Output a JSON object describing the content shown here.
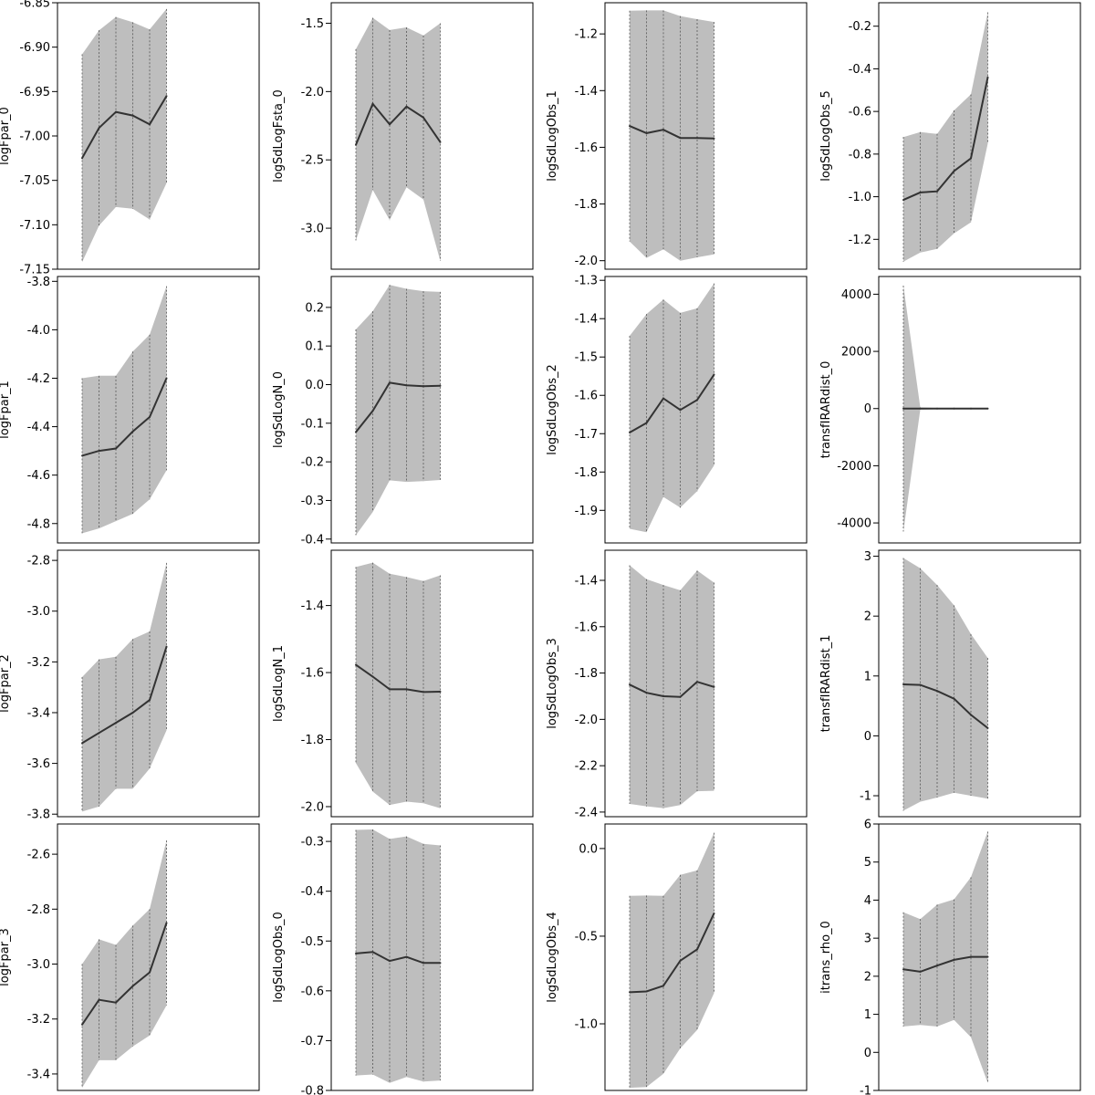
{
  "chart_data": [
    {
      "type": "area",
      "ylabel": "logFpar_0",
      "yticks": [
        -6.85,
        -6.9,
        -6.95,
        -7.0,
        -7.05,
        -7.1,
        -7.15
      ],
      "ylim": [
        -7.15,
        -6.85
      ],
      "x": [
        1,
        2,
        3,
        4,
        5,
        6
      ],
      "mean": [
        -7.025,
        -6.991,
        -6.973,
        -6.977,
        -6.987,
        -6.955
      ],
      "lower": [
        -7.142,
        -7.101,
        -7.08,
        -7.082,
        -7.094,
        -7.053
      ],
      "upper": [
        -6.908,
        -6.881,
        -6.866,
        -6.872,
        -6.88,
        -6.857
      ]
    },
    {
      "type": "area",
      "ylabel": "logSdLogFsta_0",
      "yticks": [
        -1.5,
        -2.0,
        -2.5,
        -3.0
      ],
      "ylim": [
        -3.3,
        -1.35
      ],
      "x": [
        1,
        2,
        3,
        4,
        5,
        6
      ],
      "mean": [
        -2.39,
        -2.09,
        -2.24,
        -2.11,
        -2.19,
        -2.37
      ],
      "lower": [
        -3.09,
        -2.72,
        -2.94,
        -2.7,
        -2.79,
        -3.24
      ],
      "upper": [
        -1.69,
        -1.46,
        -1.55,
        -1.53,
        -1.59,
        -1.5
      ]
    },
    {
      "type": "area",
      "ylabel": "logSdLogObs_1",
      "yticks": [
        -1.2,
        -1.4,
        -1.6,
        -1.8,
        -2.0
      ],
      "ylim": [
        -2.03,
        -1.09
      ],
      "x": [
        1,
        2,
        3,
        4,
        5,
        6
      ],
      "mean": [
        -1.525,
        -1.55,
        -1.538,
        -1.567,
        -1.567,
        -1.569
      ],
      "lower": [
        -1.932,
        -1.99,
        -1.96,
        -2.0,
        -1.988,
        -1.978
      ],
      "upper": [
        -1.118,
        -1.117,
        -1.117,
        -1.137,
        -1.148,
        -1.158
      ]
    },
    {
      "type": "area",
      "ylabel": "logSdLogObs_5",
      "yticks": [
        -0.2,
        -0.4,
        -0.6,
        -0.8,
        -1.0,
        -1.2
      ],
      "ylim": [
        -1.34,
        -0.09
      ],
      "x": [
        1,
        2,
        3,
        4,
        5,
        6
      ],
      "mean": [
        -1.015,
        -0.98,
        -0.975,
        -0.88,
        -0.82,
        -0.44
      ],
      "lower": [
        -1.305,
        -1.262,
        -1.245,
        -1.172,
        -1.12,
        -0.75
      ],
      "upper": [
        -0.72,
        -0.697,
        -0.705,
        -0.595,
        -0.52,
        -0.135
      ]
    },
    {
      "type": "area",
      "ylabel": "logFpar_1",
      "yticks": [
        -3.8,
        -4.0,
        -4.2,
        -4.4,
        -4.6,
        -4.8
      ],
      "ylim": [
        -4.88,
        -3.78
      ],
      "x": [
        1,
        2,
        3,
        4,
        5,
        6
      ],
      "mean": [
        -4.52,
        -4.5,
        -4.49,
        -4.42,
        -4.36,
        -4.2
      ],
      "lower": [
        -4.84,
        -4.82,
        -4.79,
        -4.76,
        -4.7,
        -4.58
      ],
      "upper": [
        -4.2,
        -4.19,
        -4.19,
        -4.09,
        -4.02,
        -3.82
      ]
    },
    {
      "type": "area",
      "ylabel": "logSdLogN_0",
      "yticks": [
        0.2,
        0.1,
        0.0,
        -0.1,
        -0.2,
        -0.3,
        -0.4
      ],
      "ylim": [
        -0.41,
        0.28
      ],
      "x": [
        1,
        2,
        3,
        4,
        5,
        6
      ],
      "mean": [
        -0.123,
        -0.068,
        0.005,
        -0.002,
        -0.004,
        -0.003
      ],
      "lower": [
        -0.39,
        -0.33,
        -0.248,
        -0.252,
        -0.25,
        -0.247
      ],
      "upper": [
        0.143,
        0.19,
        0.258,
        0.248,
        0.242,
        0.24
      ]
    },
    {
      "type": "area",
      "ylabel": "logSdLogObs_2",
      "yticks": [
        -1.3,
        -1.4,
        -1.5,
        -1.6,
        -1.7,
        -1.8,
        -1.9
      ],
      "ylim": [
        -1.985,
        -1.29
      ],
      "x": [
        1,
        2,
        3,
        4,
        5,
        6
      ],
      "mean": [
        -1.697,
        -1.672,
        -1.608,
        -1.638,
        -1.612,
        -1.546
      ],
      "lower": [
        -1.948,
        -1.957,
        -1.865,
        -1.893,
        -1.85,
        -1.783
      ],
      "upper": [
        -1.445,
        -1.388,
        -1.35,
        -1.385,
        -1.373,
        -1.308
      ]
    },
    {
      "type": "area",
      "ylabel": "transfIRARdist_0",
      "yticks": [
        4000,
        2000,
        0,
        -2000,
        -4000
      ],
      "ylim": [
        -4700,
        4620
      ],
      "x": [
        1,
        2,
        3,
        4,
        5,
        6
      ],
      "mean": [
        0,
        0,
        0,
        0,
        0,
        0
      ],
      "lower": [
        -4300,
        -40,
        -20,
        -15,
        -12,
        -10
      ],
      "upper": [
        4300,
        40,
        20,
        15,
        12,
        10
      ]
    },
    {
      "type": "area",
      "ylabel": "logFpar_2",
      "yticks": [
        -2.8,
        -3.0,
        -3.2,
        -3.4,
        -3.6,
        -3.8
      ],
      "ylim": [
        -3.81,
        -2.76
      ],
      "x": [
        1,
        2,
        3,
        4,
        5,
        6
      ],
      "mean": [
        -3.52,
        -3.48,
        -3.44,
        -3.4,
        -3.35,
        -3.14
      ],
      "lower": [
        -3.79,
        -3.77,
        -3.7,
        -3.7,
        -3.62,
        -3.47
      ],
      "upper": [
        -3.26,
        -3.19,
        -3.18,
        -3.11,
        -3.08,
        -2.81
      ]
    },
    {
      "type": "area",
      "ylabel": "logSdLogN_1",
      "yticks": [
        -1.4,
        -1.6,
        -1.8,
        -2.0
      ],
      "ylim": [
        -2.03,
        -1.235
      ],
      "x": [
        1,
        2,
        3,
        4,
        5,
        6
      ],
      "mean": [
        -1.577,
        -1.612,
        -1.65,
        -1.65,
        -1.658,
        -1.657
      ],
      "lower": [
        -1.87,
        -1.955,
        -1.995,
        -1.985,
        -1.99,
        -2.005
      ],
      "upper": [
        -1.285,
        -1.272,
        -1.305,
        -1.315,
        -1.327,
        -1.31
      ]
    },
    {
      "type": "area",
      "ylabel": "logSdLogObs_3",
      "yticks": [
        -1.4,
        -1.6,
        -1.8,
        -2.0,
        -2.2,
        -2.4
      ],
      "ylim": [
        -2.42,
        -1.27
      ],
      "x": [
        1,
        2,
        3,
        4,
        5,
        6
      ],
      "mean": [
        -1.85,
        -1.885,
        -1.9,
        -1.903,
        -1.838,
        -1.86
      ],
      "lower": [
        -2.365,
        -2.375,
        -2.383,
        -2.37,
        -2.31,
        -2.308
      ],
      "upper": [
        -1.335,
        -1.395,
        -1.42,
        -1.443,
        -1.358,
        -1.41
      ]
    },
    {
      "type": "area",
      "ylabel": "transfIRARdist_1",
      "yticks": [
        3,
        2,
        1,
        0,
        -1
      ],
      "ylim": [
        -1.35,
        3.1
      ],
      "x": [
        1,
        2,
        3,
        4,
        5,
        6
      ],
      "mean": [
        0.86,
        0.85,
        0.75,
        0.62,
        0.35,
        0.13
      ],
      "lower": [
        -1.25,
        -1.1,
        -1.03,
        -0.95,
        -1.0,
        -1.05
      ],
      "upper": [
        2.97,
        2.8,
        2.52,
        2.18,
        1.7,
        1.3
      ]
    },
    {
      "type": "area",
      "ylabel": "logFpar_3",
      "yticks": [
        -2.6,
        -2.8,
        -3.0,
        -3.2,
        -3.4
      ],
      "ylim": [
        -3.46,
        -2.49
      ],
      "x": [
        1,
        2,
        3,
        4,
        5,
        6
      ],
      "mean": [
        -3.22,
        -3.13,
        -3.14,
        -3.08,
        -3.03,
        -2.85
      ],
      "lower": [
        -3.45,
        -3.35,
        -3.35,
        -3.3,
        -3.26,
        -3.15
      ],
      "upper": [
        -3.0,
        -2.91,
        -2.93,
        -2.86,
        -2.8,
        -2.55
      ]
    },
    {
      "type": "area",
      "ylabel": "logSdLogObs_0",
      "yticks": [
        -0.3,
        -0.4,
        -0.5,
        -0.6,
        -0.7,
        -0.8
      ],
      "ylim": [
        -0.8,
        -0.265
      ],
      "x": [
        1,
        2,
        3,
        4,
        5,
        6
      ],
      "mean": [
        -0.525,
        -0.522,
        -0.54,
        -0.532,
        -0.544,
        -0.544
      ],
      "lower": [
        -0.77,
        -0.768,
        -0.785,
        -0.773,
        -0.782,
        -0.78
      ],
      "upper": [
        -0.277,
        -0.276,
        -0.295,
        -0.29,
        -0.305,
        -0.308
      ]
    },
    {
      "type": "area",
      "ylabel": "logSdLogObs_4",
      "yticks": [
        0.0,
        -0.5,
        -1.0
      ],
      "ylim": [
        -1.38,
        0.14
      ],
      "x": [
        1,
        2,
        3,
        4,
        5,
        6
      ],
      "mean": [
        -0.82,
        -0.815,
        -0.783,
        -0.64,
        -0.575,
        -0.37
      ],
      "lower": [
        -1.365,
        -1.36,
        -1.285,
        -1.14,
        -1.035,
        -0.825
      ],
      "upper": [
        -0.27,
        -0.268,
        -0.27,
        -0.15,
        -0.125,
        0.09
      ]
    },
    {
      "type": "area",
      "ylabel": "itrans_rho_0",
      "yticks": [
        6,
        5,
        4,
        3,
        2,
        1,
        0,
        -1
      ],
      "ylim": [
        -1.0,
        6.0
      ],
      "x": [
        1,
        2,
        3,
        4,
        5,
        6
      ],
      "mean": [
        2.18,
        2.12,
        2.28,
        2.43,
        2.51,
        2.51
      ],
      "lower": [
        0.68,
        0.72,
        0.68,
        0.85,
        0.4,
        -0.8
      ],
      "upper": [
        3.68,
        3.5,
        3.88,
        4.02,
        4.6,
        5.8
      ]
    }
  ]
}
